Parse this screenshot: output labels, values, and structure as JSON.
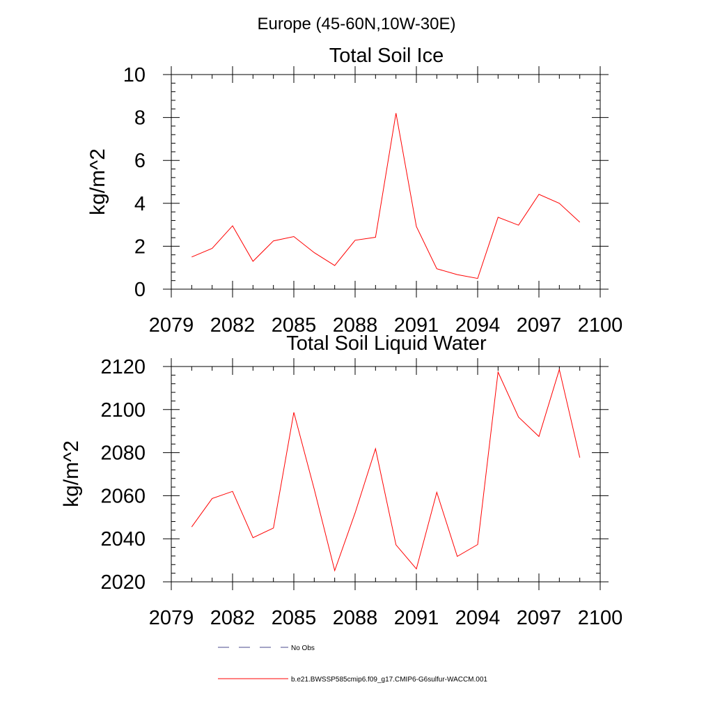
{
  "figure": {
    "title": "Europe (45-60N,10W-30E)"
  },
  "chart_data": [
    {
      "type": "line",
      "title": "Total Soil Ice",
      "xlabel": "",
      "ylabel": "kg/m^2",
      "xlim": [
        2079,
        2100
      ],
      "ylim": [
        0,
        10
      ],
      "xticks": [
        2079,
        2082,
        2085,
        2088,
        2091,
        2094,
        2097,
        2100
      ],
      "yticks": [
        0,
        2,
        4,
        6,
        8,
        10
      ],
      "x_tick_labels": [
        "2079",
        "2082",
        "2085",
        "2088",
        "2091",
        "2094",
        "2097",
        "2100"
      ],
      "y_tick_labels": [
        "0",
        "2",
        "4",
        "6",
        "8",
        "10"
      ],
      "grid": false,
      "series": [
        {
          "name": "b.e21.BWSSP585cmip6.f09_g17.CMIP6-G6sulfur-WACCM.001",
          "color": "#ff0000",
          "x": [
            2080,
            2081,
            2082,
            2083,
            2084,
            2085,
            2086,
            2087,
            2088,
            2089,
            2090,
            2091,
            2092,
            2093,
            2094,
            2095,
            2096,
            2097,
            2098,
            2099
          ],
          "y": [
            1.5,
            1.9,
            2.95,
            1.3,
            2.25,
            2.45,
            1.7,
            1.1,
            2.28,
            2.42,
            8.2,
            2.92,
            0.95,
            0.68,
            0.5,
            3.35,
            2.98,
            4.42,
            4.0,
            3.12
          ]
        }
      ]
    },
    {
      "type": "line",
      "title": "Total Soil Liquid Water",
      "xlabel": "",
      "ylabel": "kg/m^2",
      "xlim": [
        2079,
        2100
      ],
      "ylim": [
        2020,
        2120
      ],
      "xticks": [
        2079,
        2082,
        2085,
        2088,
        2091,
        2094,
        2097,
        2100
      ],
      "yticks": [
        2020,
        2040,
        2060,
        2080,
        2100,
        2120
      ],
      "x_tick_labels": [
        "2079",
        "2082",
        "2085",
        "2088",
        "2091",
        "2094",
        "2097",
        "2100"
      ],
      "y_tick_labels": [
        "2020",
        "2040",
        "2060",
        "2080",
        "2100",
        "2120"
      ],
      "grid": false,
      "series": [
        {
          "name": "b.e21.BWSSP585cmip6.f09_g17.CMIP6-G6sulfur-WACCM.001",
          "color": "#ff0000",
          "x": [
            2080,
            2081,
            2082,
            2083,
            2084,
            2085,
            2086,
            2087,
            2088,
            2089,
            2090,
            2091,
            2092,
            2093,
            2094,
            2095,
            2096,
            2097,
            2098,
            2099
          ],
          "y": [
            2045.5,
            2058.7,
            2062,
            2040.5,
            2045,
            2098.7,
            2063,
            2025.2,
            2052,
            2081.8,
            2037.2,
            2026,
            2061.6,
            2031.8,
            2037.3,
            2117.4,
            2096.5,
            2087.5,
            2118.6,
            2077.7
          ]
        }
      ]
    }
  ],
  "legend": {
    "placement": "bottom",
    "entries": [
      {
        "label": "No Obs",
        "color": "#4a4a8c",
        "style": "dashed"
      },
      {
        "label": "b.e21.BWSSP585cmip6.f09_g17.CMIP6-G6sulfur-WACCM.001",
        "color": "#ff0000",
        "style": "solid"
      }
    ]
  }
}
